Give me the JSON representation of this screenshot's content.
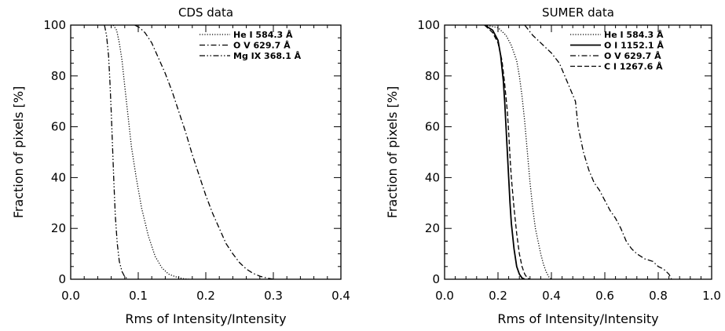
{
  "chart_data": [
    {
      "type": "line",
      "title": "CDS data",
      "xlabel": "Rms of Intensity/Intensity",
      "ylabel": "Fraction of pixels [%]",
      "xlim": [
        0.0,
        0.4
      ],
      "ylim": [
        0,
        100
      ],
      "xticks": [
        "0.0",
        "0.1",
        "0.2",
        "0.3",
        "0.4"
      ],
      "yticks": [
        "0",
        "20",
        "40",
        "60",
        "80",
        "100"
      ],
      "grid": false,
      "legend_position": "top-right",
      "series": [
        {
          "name": "He I 584.3 Å",
          "style": "dotted",
          "x": [
            0.063,
            0.068,
            0.072,
            0.076,
            0.08,
            0.085,
            0.09,
            0.097,
            0.105,
            0.115,
            0.125,
            0.135,
            0.145,
            0.155,
            0.165,
            0.17,
            0.175
          ],
          "y": [
            100,
            98,
            93,
            86,
            76,
            64,
            52,
            40,
            28,
            17,
            9,
            4.5,
            2,
            1,
            0.3,
            0.1,
            0
          ]
        },
        {
          "name": "O V  629.7 Å",
          "style": "dashdot",
          "x": [
            0.095,
            0.102,
            0.11,
            0.12,
            0.13,
            0.14,
            0.15,
            0.16,
            0.17,
            0.18,
            0.19,
            0.2,
            0.21,
            0.22,
            0.23,
            0.24,
            0.25,
            0.26,
            0.27,
            0.28,
            0.29,
            0.3
          ],
          "y": [
            100,
            99,
            97,
            93,
            87,
            81,
            74,
            66,
            58,
            49,
            41,
            33,
            26,
            20,
            14,
            10,
            6.5,
            4,
            2.3,
            1.2,
            0.5,
            0
          ]
        },
        {
          "name": "Mg IX 368.1 Å",
          "style": "dashdotdot",
          "x": [
            0.05,
            0.053,
            0.056,
            0.058,
            0.06,
            0.062,
            0.064,
            0.066,
            0.069,
            0.072,
            0.076,
            0.08,
            0.085
          ],
          "y": [
            100,
            96,
            88,
            78,
            66,
            52,
            38,
            25,
            14,
            7,
            3,
            1,
            0
          ]
        }
      ]
    },
    {
      "type": "line",
      "title": "SUMER data",
      "xlabel": "Rms of Intensity/Intensity",
      "ylabel": "Fraction of pixels [%]",
      "xlim": [
        0.0,
        1.0
      ],
      "ylim": [
        0,
        100
      ],
      "xticks": [
        "0.0",
        "0.2",
        "0.4",
        "0.6",
        "0.8",
        "1.0"
      ],
      "yticks": [
        "0",
        "20",
        "40",
        "60",
        "80",
        "100"
      ],
      "grid": false,
      "legend_position": "top-right",
      "series": [
        {
          "name": "He I 584.3 Å",
          "style": "dotted",
          "x": [
            0.15,
            0.2,
            0.23,
            0.25,
            0.27,
            0.28,
            0.29,
            0.3,
            0.31,
            0.32,
            0.33,
            0.34,
            0.35,
            0.36,
            0.37,
            0.38,
            0.39,
            0.4
          ],
          "y": [
            100,
            99,
            96,
            92,
            86,
            80,
            72,
            62,
            50,
            38,
            28,
            20,
            15,
            10,
            6,
            3,
            1,
            0
          ]
        },
        {
          "name": "O I 1152.1 Å",
          "style": "solid",
          "x": [
            0.15,
            0.18,
            0.2,
            0.21,
            0.22,
            0.225,
            0.23,
            0.235,
            0.24,
            0.245,
            0.25,
            0.26,
            0.27,
            0.28,
            0.29,
            0.3
          ],
          "y": [
            100,
            98,
            94,
            88,
            78,
            70,
            60,
            50,
            40,
            30,
            22,
            12,
            5,
            2,
            0.5,
            0
          ]
        },
        {
          "name": "O V  629.7 Å",
          "style": "dashdot",
          "x": [
            0.3,
            0.33,
            0.37,
            0.4,
            0.43,
            0.45,
            0.47,
            0.49,
            0.5,
            0.52,
            0.54,
            0.56,
            0.58,
            0.6,
            0.62,
            0.64,
            0.66,
            0.68,
            0.7,
            0.72,
            0.75,
            0.78,
            0.8,
            0.82,
            0.84,
            0.85
          ],
          "y": [
            100,
            96,
            92,
            89,
            85,
            80,
            75,
            70,
            60,
            50,
            43,
            38,
            35,
            31,
            27,
            24,
            20,
            15,
            12,
            10,
            8,
            7,
            5,
            4,
            2,
            0
          ]
        },
        {
          "name": "C I 1267.6 Å",
          "style": "dashed",
          "x": [
            0.15,
            0.18,
            0.2,
            0.215,
            0.225,
            0.235,
            0.24,
            0.245,
            0.25,
            0.26,
            0.27,
            0.28,
            0.29,
            0.3,
            0.31,
            0.32
          ],
          "y": [
            100,
            97,
            93,
            86,
            77,
            66,
            58,
            48,
            40,
            28,
            18,
            10,
            5,
            2,
            0.5,
            0
          ]
        }
      ]
    }
  ]
}
